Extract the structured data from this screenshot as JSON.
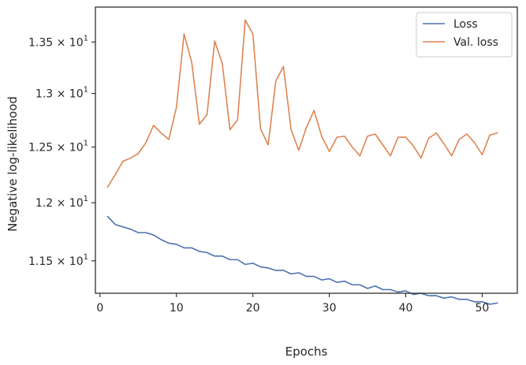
{
  "chart_data": {
    "type": "line",
    "title": "",
    "xlabel": "Epochs",
    "ylabel": "Negative log-likelihood",
    "y_scale": "log",
    "xlim": [
      -0.6,
      54.6
    ],
    "ylim": [
      11.23,
      13.85
    ],
    "grid": false,
    "legend_position": "top-right",
    "x_ticks": [
      {
        "value": 0,
        "label": "0"
      },
      {
        "value": 10,
        "label": "10"
      },
      {
        "value": 20,
        "label": "20"
      },
      {
        "value": 30,
        "label": "30"
      },
      {
        "value": 40,
        "label": "40"
      },
      {
        "value": 50,
        "label": "50"
      }
    ],
    "y_ticks": [
      {
        "value": 11.5,
        "mantissa": "1.15",
        "times": "×",
        "base": "10",
        "exponent": "1"
      },
      {
        "value": 12.0,
        "mantissa": "1.2",
        "times": "×",
        "base": "10",
        "exponent": "1"
      },
      {
        "value": 12.5,
        "mantissa": "1.25",
        "times": "×",
        "base": "10",
        "exponent": "1"
      },
      {
        "value": 13.0,
        "mantissa": "1.3",
        "times": "×",
        "base": "10",
        "exponent": "1"
      },
      {
        "value": 13.5,
        "mantissa": "1.35",
        "times": "×",
        "base": "10",
        "exponent": "1"
      }
    ],
    "x": [
      1,
      2,
      3,
      4,
      5,
      6,
      7,
      8,
      9,
      10,
      11,
      12,
      13,
      14,
      15,
      16,
      17,
      18,
      19,
      20,
      21,
      22,
      23,
      24,
      25,
      26,
      27,
      28,
      29,
      30,
      31,
      32,
      33,
      34,
      35,
      36,
      37,
      38,
      39,
      40,
      41,
      42,
      43,
      44,
      45,
      46,
      47,
      48,
      49,
      50,
      51,
      52
    ],
    "series": [
      {
        "name": "Loss",
        "color": "#4c72b0",
        "values": [
          11.88,
          11.81,
          11.79,
          11.77,
          11.74,
          11.74,
          11.72,
          11.68,
          11.65,
          11.64,
          11.61,
          11.61,
          11.58,
          11.57,
          11.54,
          11.54,
          11.51,
          11.51,
          11.47,
          11.48,
          11.45,
          11.44,
          11.42,
          11.42,
          11.39,
          11.4,
          11.37,
          11.37,
          11.34,
          11.35,
          11.32,
          11.33,
          11.3,
          11.3,
          11.27,
          11.29,
          11.26,
          11.26,
          11.24,
          11.25,
          11.22,
          11.23,
          11.21,
          11.21,
          11.19,
          11.2,
          11.18,
          11.18,
          11.16,
          11.16,
          11.14,
          11.15
        ]
      },
      {
        "name": "Val. loss",
        "color": "#dd8452",
        "values": [
          12.14,
          12.25,
          12.37,
          12.4,
          12.44,
          12.54,
          12.7,
          12.63,
          12.57,
          12.87,
          13.58,
          13.3,
          12.71,
          12.8,
          13.51,
          13.29,
          12.66,
          12.75,
          13.72,
          13.58,
          12.67,
          12.52,
          13.12,
          13.26,
          12.66,
          12.47,
          12.68,
          12.84,
          12.6,
          12.46,
          12.59,
          12.6,
          12.5,
          12.42,
          12.6,
          12.62,
          12.52,
          12.42,
          12.59,
          12.59,
          12.51,
          12.4,
          12.58,
          12.63,
          12.53,
          12.42,
          12.57,
          12.62,
          12.54,
          12.43,
          12.61,
          12.63
        ]
      }
    ]
  }
}
